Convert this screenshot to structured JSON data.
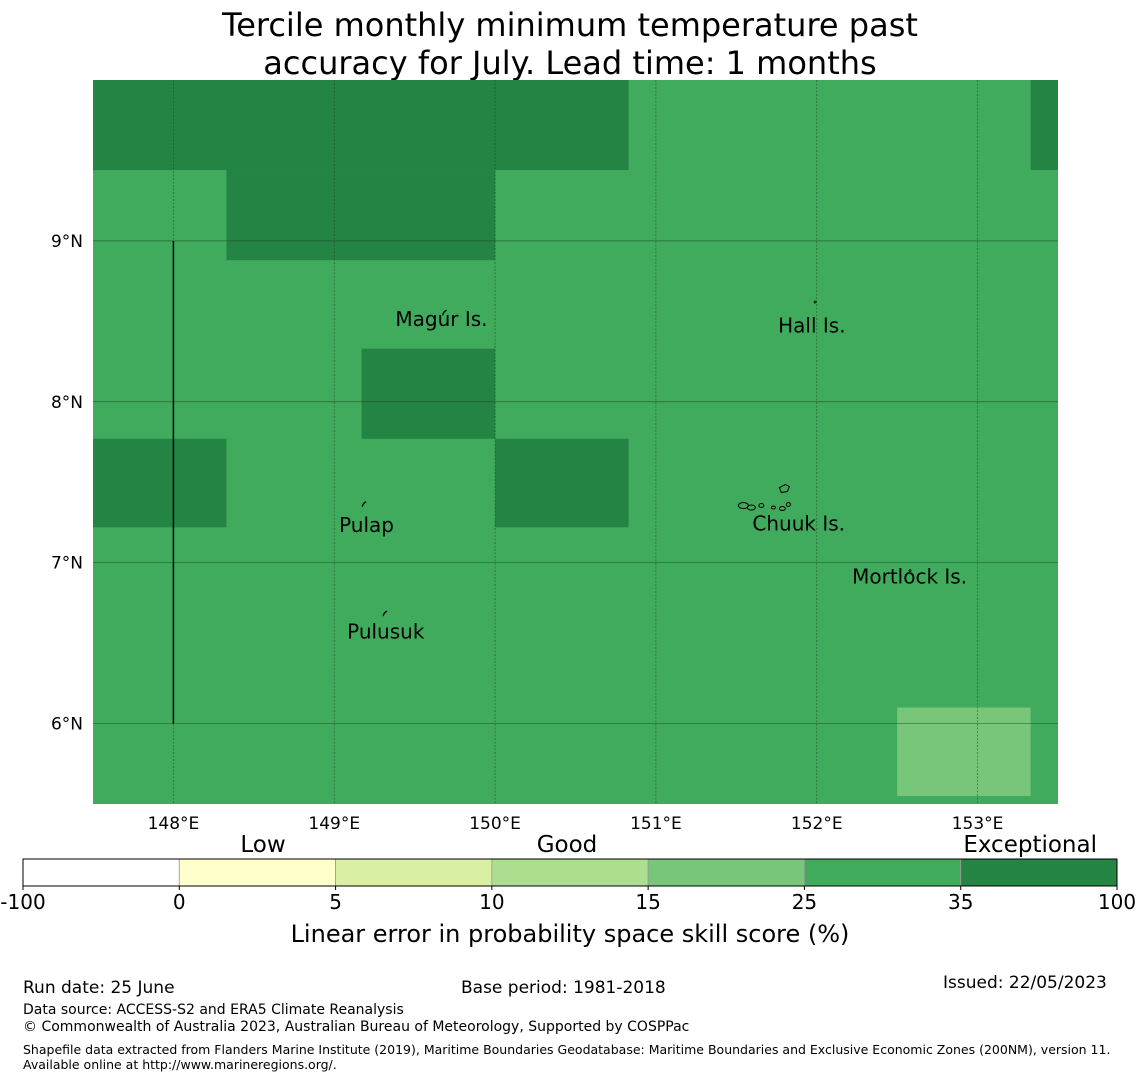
{
  "title": {
    "line1": "Tercile monthly minimum temperature past",
    "line2": "accuracy for July. Lead time: 1 months"
  },
  "map": {
    "extent": {
      "lon_min": 147.5,
      "lon_max": 153.5,
      "lat_min": 5.5,
      "lat_max": 10.0
    },
    "lon_ticks": [
      {
        "value": 148,
        "label": "148°E"
      },
      {
        "value": 149,
        "label": "149°E"
      },
      {
        "value": 150,
        "label": "150°E"
      },
      {
        "value": 151,
        "label": "151°E"
      },
      {
        "value": 152,
        "label": "152°E"
      },
      {
        "value": 153,
        "label": "153°E"
      }
    ],
    "lat_ticks": [
      {
        "value": 9,
        "label": "9°N"
      },
      {
        "value": 8,
        "label": "8°N"
      },
      {
        "value": 7,
        "label": "7°N"
      },
      {
        "value": 6,
        "label": "6°N"
      }
    ],
    "gridlines": true,
    "background_color": "#41ab5d",
    "cells": [
      {
        "lon0": 147.5,
        "lon1": 150.83,
        "lat0": 9.44,
        "lat1": 10.0,
        "color": "#238443"
      },
      {
        "lon0": 153.33,
        "lon1": 153.5,
        "lat0": 9.44,
        "lat1": 10.0,
        "color": "#238443"
      },
      {
        "lon0": 148.33,
        "lon1": 150.0,
        "lat0": 8.88,
        "lat1": 9.44,
        "color": "#238443"
      },
      {
        "lon0": 149.17,
        "lon1": 150.0,
        "lat0": 7.77,
        "lat1": 8.33,
        "color": "#238443"
      },
      {
        "lon0": 147.5,
        "lon1": 148.33,
        "lat0": 7.22,
        "lat1": 7.77,
        "color": "#238443"
      },
      {
        "lon0": 150.0,
        "lon1": 150.83,
        "lat0": 7.22,
        "lat1": 7.77,
        "color": "#238443"
      },
      {
        "lon0": 152.5,
        "lon1": 153.33,
        "lat0": 5.55,
        "lat1": 6.1,
        "color": "#78c679"
      }
    ],
    "boundary_line": {
      "lon": 148.0,
      "lat0": 6.0,
      "lat1": 9.0
    },
    "islands": [
      {
        "name": "Magur Is.",
        "lon": 149.68,
        "lat": 8.55,
        "label_lon": 149.38,
        "label_lat": 8.47
      },
      {
        "name": "Hall Is.",
        "lon": 151.99,
        "lat": 8.62,
        "label_lon": 151.76,
        "label_lat": 8.43
      },
      {
        "name": "Pulap",
        "lon": 149.18,
        "lat": 7.36,
        "label_lon": 149.03,
        "label_lat": 7.19
      },
      {
        "name": "Chuuk Is.",
        "lon": 151.78,
        "lat": 7.38,
        "label_lon": 151.6,
        "label_lat": 7.2
      },
      {
        "name": "Mortlock Is.",
        "lon": 152.58,
        "lat": 6.95,
        "label_lon": 152.22,
        "label_lat": 6.87
      },
      {
        "name": "Pulusuk",
        "lon": 149.31,
        "lat": 6.68,
        "label_lon": 149.08,
        "label_lat": 6.53
      }
    ]
  },
  "legend": {
    "categories": [
      {
        "label": "Low"
      },
      {
        "label": "Good"
      },
      {
        "label": "Exceptional"
      }
    ],
    "tick_labels": [
      "-100",
      "0",
      "5",
      "10",
      "15",
      "25",
      "35",
      "100"
    ],
    "colors": [
      "#ffffff",
      "#ffffcc",
      "#d9f0a3",
      "#addd8e",
      "#78c679",
      "#41ab5d",
      "#238443"
    ],
    "label": "Linear error in probability space skill score (%)"
  },
  "footer": {
    "run_date": "Run date: 25 June",
    "base_period": "Base period: 1981-2018",
    "issued": "Issued: 22/05/2023",
    "data_source": "Data source: ACCESS-S2 and ERA5 Climate Reanalysis",
    "copyright": "© Commonwealth of Australia 2023, Australian Bureau of Meteorology, Supported by COSPPac",
    "shapefile": "Shapefile data extracted from Flanders Marine Institute (2019), Maritime Boundaries Geodatabase: Maritime Boundaries and Exclusive Economic Zones (200NM), version 11. Available online at http://www.marineregions.org/."
  }
}
